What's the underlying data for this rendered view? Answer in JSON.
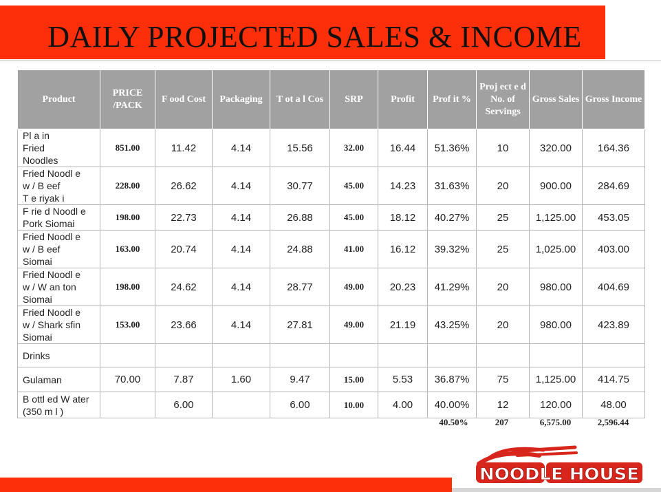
{
  "title": "DAILY PROJECTED SALES & INCOME",
  "table": {
    "headers": [
      "Product",
      "PRICE /PACK",
      "F ood Cost",
      "Packaging",
      "T ot a l Cos",
      "SRP",
      "Profit",
      "Prof it %",
      "Proj ect e d No. of Servings",
      "Gross Sales",
      "Gross Income"
    ],
    "rows": [
      {
        "product": [
          "Pl a in",
          "Fried",
          "Noodles"
        ],
        "price": "851.00",
        "food_cost": "11.42",
        "packaging": "4.14",
        "total_cost": "15.56",
        "srp": "32.00",
        "profit": "16.44",
        "profit_pct": "51.36%",
        "servings": "10",
        "gross_sales": "320.00",
        "gross_income": "164.36"
      },
      {
        "product": [
          "Fried Noodl e",
          "w / B eef",
          "T e riyak i"
        ],
        "price": "228.00",
        "food_cost": "26.62",
        "packaging": "4.14",
        "total_cost": "30.77",
        "srp": "45.00",
        "profit": "14.23",
        "profit_pct": "31.63%",
        "servings": "20",
        "gross_sales": "900.00",
        "gross_income": "284.69"
      },
      {
        "product": [
          "F rie d Noodl e",
          "Pork Siomai"
        ],
        "price": "198.00",
        "food_cost": "22.73",
        "packaging": "4.14",
        "total_cost": "26.88",
        "srp": "45.00",
        "profit": "18.12",
        "profit_pct": "40.27%",
        "servings": "25",
        "gross_sales": "1,125.00",
        "gross_income": "453.05"
      },
      {
        "product": [
          "Fried Noodl e",
          "w / B eef",
          "Siomai"
        ],
        "price": "163.00",
        "food_cost": "20.74",
        "packaging": "4.14",
        "total_cost": "24.88",
        "srp": "41.00",
        "profit": "16.12",
        "profit_pct": "39.32%",
        "servings": "25",
        "gross_sales": "1,025.00",
        "gross_income": "403.00"
      },
      {
        "product": [
          "Fried Noodl e",
          "w / W an ton",
          "Siomai"
        ],
        "price": "198.00",
        "food_cost": "24.62",
        "packaging": "4.14",
        "total_cost": "28.77",
        "srp": "49.00",
        "profit": "20.23",
        "profit_pct": "41.29%",
        "servings": "20",
        "gross_sales": "980.00",
        "gross_income": "404.69"
      },
      {
        "product": [
          "Fried Noodl e",
          "w / Shark sfin",
          "Siomai"
        ],
        "price": "153.00",
        "food_cost": "23.66",
        "packaging": "4.14",
        "total_cost": "27.81",
        "srp": "49.00",
        "profit": "21.19",
        "profit_pct": "43.25%",
        "servings": "20",
        "gross_sales": "980.00",
        "gross_income": "423.89"
      },
      {
        "product": [
          "Drinks"
        ],
        "price": "",
        "food_cost": "",
        "packaging": "",
        "total_cost": "",
        "srp": "",
        "profit": "",
        "profit_pct": "",
        "servings": "",
        "gross_sales": "",
        "gross_income": ""
      },
      {
        "product": [
          "Gulaman"
        ],
        "price": "70.00",
        "food_cost": "7.87",
        "packaging": "1.60",
        "total_cost": "9.47",
        "srp": "15.00",
        "profit": "5.53",
        "profit_pct": "36.87%",
        "servings": "75",
        "gross_sales": "1,125.00",
        "gross_income": "414.75"
      },
      {
        "product": [
          "B ottl ed W ater",
          "(350 m l )"
        ],
        "price": "",
        "food_cost": "6.00",
        "packaging": "",
        "total_cost": "6.00",
        "srp": "10.00",
        "profit": "4.00",
        "profit_pct": "40.00%",
        "servings": "12",
        "gross_sales": "120.00",
        "gross_income": "48.00"
      }
    ],
    "totals": {
      "profit_pct": "40.50%",
      "servings": "207",
      "gross_sales": "6,575.00",
      "gross_income": "2,596.44"
    }
  },
  "logo": {
    "text": "NOODLE HOUSE"
  },
  "colors": {
    "accent": "#fc2f0a",
    "header_gray": "#a1a1a1",
    "logo_red": "#d8261c"
  }
}
